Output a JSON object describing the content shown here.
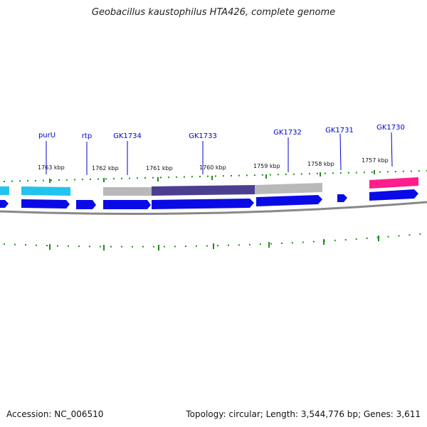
{
  "header": {
    "title": "Geobacillus kaustophilus HTA426, complete genome"
  },
  "footer": {
    "accession": "Accession: NC_006510",
    "topology": "Topology: circular; Length: 3,544,776 bp; Genes: 3,611"
  },
  "map": {
    "ticks": [
      "1763 kbp",
      "1762 kbp",
      "1761 kbp",
      "1760 kbp",
      "1759 kbp",
      "1758 kbp",
      "1757 kbp"
    ],
    "gene_labels": [
      "purU",
      "rtp",
      "GK1734",
      "GK1733",
      "GK1732",
      "GK1731",
      "GK1730"
    ],
    "colors": {
      "cds_blue": "#0a0ae6",
      "feature_cyan": "#22c3ee",
      "feature_gray": "#b9b9b9",
      "feature_purple": "#4d3f8f",
      "feature_pink": "#ff1e8c",
      "backbone": "#888888",
      "tick_green": "#1e8c1e",
      "label_blue": "#0000cc"
    }
  }
}
